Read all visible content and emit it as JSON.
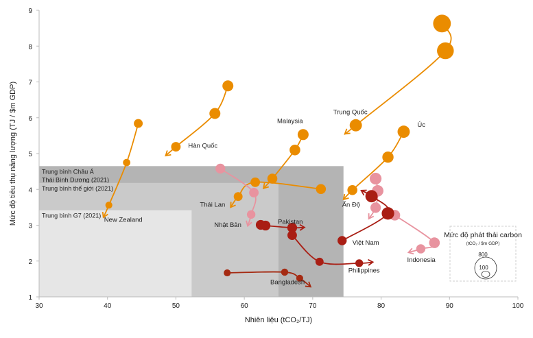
{
  "chart_data": {
    "type": "scatter",
    "subtype": "bubble-trajectory",
    "xlabel": "Nhiên liệu (tCO₂/TJ)",
    "ylabel": "Mức độ tiêu thụ năng lượng (TJ / $m GDP)",
    "xlim": [
      30,
      100
    ],
    "ylim": [
      1,
      9
    ],
    "xticks": [
      30,
      40,
      50,
      60,
      70,
      80,
      90,
      100
    ],
    "yticks": [
      1,
      2,
      3,
      4,
      5,
      6,
      7,
      8,
      9
    ],
    "grid": false,
    "benchmarks": [
      {
        "label": "Trung bình Châu Á Thái Bình Dương (2021)",
        "label_lines": [
          "Trung bình Châu Á",
          "Thái Bình Dương (2021)"
        ],
        "x": 74.5,
        "y": 4.65,
        "color": "#b4b4b4"
      },
      {
        "label": "Trung bình thế giới (2021)",
        "label_lines": [
          "Trung bình thế giới (2021)"
        ],
        "x": 65.0,
        "y": 4.18,
        "color": "#cacaca"
      },
      {
        "label": "Trung bình G7 (2021)",
        "label_lines": [
          "Trung bình G7 (2021)"
        ],
        "x": 52.3,
        "y": 3.42,
        "color": "#e6e6e6"
      }
    ],
    "series": [
      {
        "name": "Trung Quốc",
        "color": "#ea8c00",
        "points": [
          {
            "x": 88.9,
            "y": 8.63,
            "size": 520
          },
          {
            "x": 89.4,
            "y": 7.87,
            "size": 470
          },
          {
            "x": 76.3,
            "y": 5.79,
            "size": 250
          }
        ],
        "arrow": {
          "x": 74.7,
          "y": 5.55
        },
        "label_pos": {
          "x": 73.0,
          "y": 6.1
        }
      },
      {
        "name": "Úc",
        "color": "#ea8c00",
        "points": [
          {
            "x": 83.3,
            "y": 5.61,
            "size": 250
          },
          {
            "x": 81.0,
            "y": 4.9,
            "size": 210
          },
          {
            "x": 75.8,
            "y": 3.98,
            "size": 165
          }
        ],
        "arrow": {
          "x": 74.5,
          "y": 3.72
        },
        "label_pos": {
          "x": 85.3,
          "y": 5.75
        }
      },
      {
        "name": "Hàn Quốc",
        "color": "#ea8c00",
        "points": [
          {
            "x": 57.6,
            "y": 6.89,
            "size": 200
          },
          {
            "x": 55.7,
            "y": 6.12,
            "size": 200
          },
          {
            "x": 50.0,
            "y": 5.19,
            "size": 150
          }
        ],
        "arrow": {
          "x": 48.5,
          "y": 4.94
        },
        "label_pos": {
          "x": 51.8,
          "y": 5.16
        }
      },
      {
        "name": "Malaysia",
        "color": "#ea8c00",
        "points": [
          {
            "x": 68.6,
            "y": 5.53,
            "size": 200
          },
          {
            "x": 67.4,
            "y": 5.1,
            "size": 190
          },
          {
            "x": 64.1,
            "y": 4.3,
            "size": 165
          }
        ],
        "arrow": {
          "x": 62.8,
          "y": 4.03
        },
        "label_pos": {
          "x": 64.8,
          "y": 5.85
        }
      },
      {
        "name": "Thái Lan",
        "color": "#ea8c00",
        "points": [
          {
            "x": 71.2,
            "y": 4.01,
            "size": 165
          },
          {
            "x": 61.6,
            "y": 4.2,
            "size": 150
          },
          {
            "x": 59.1,
            "y": 3.8,
            "size": 130
          }
        ],
        "arrow": {
          "x": 58.0,
          "y": 3.5
        },
        "label_pos": {
          "x": 53.5,
          "y": 3.52
        }
      },
      {
        "name": "New Zealand",
        "color": "#ea8c00",
        "points": [
          {
            "x": 44.5,
            "y": 5.84,
            "size": 130
          },
          {
            "x": 42.8,
            "y": 4.75,
            "size": 90
          },
          {
            "x": 40.2,
            "y": 3.56,
            "size": 80
          }
        ],
        "arrow": {
          "x": 39.4,
          "y": 3.22
        },
        "label_pos": {
          "x": 39.5,
          "y": 3.1
        }
      },
      {
        "name": "Nhật Bản",
        "color": "#e8939f",
        "points": [
          {
            "x": 56.5,
            "y": 4.58,
            "size": 160
          },
          {
            "x": 61.4,
            "y": 3.91,
            "size": 150
          },
          {
            "x": 61.0,
            "y": 3.3,
            "size": 120
          }
        ],
        "arrow": {
          "x": 60.5,
          "y": 2.98
        },
        "label_pos": {
          "x": 55.6,
          "y": 2.95
        }
      },
      {
        "name": "Ấn Độ",
        "color": "#e8939f",
        "points": [
          {
            "x": 79.2,
            "y": 4.3,
            "size": 230
          },
          {
            "x": 79.5,
            "y": 3.96,
            "size": 220
          },
          {
            "x": 79.2,
            "y": 3.49,
            "size": 180
          }
        ],
        "arrow": {
          "x": 78.2,
          "y": 3.18
        },
        "label_pos": {
          "x": 74.3,
          "y": 3.52
        }
      },
      {
        "name": "Indonesia",
        "color": "#e8939f",
        "points": [
          {
            "x": 82.0,
            "y": 3.28,
            "size": 190
          },
          {
            "x": 87.8,
            "y": 2.51,
            "size": 190
          },
          {
            "x": 85.8,
            "y": 2.34,
            "size": 140
          }
        ],
        "arrow": {
          "x": 84.0,
          "y": 2.24
        },
        "label_pos": {
          "x": 83.8,
          "y": 1.98
        }
      },
      {
        "name": "Việt Nam",
        "color": "#a91e14",
        "points": [
          {
            "x": 74.3,
            "y": 2.57,
            "size": 140
          },
          {
            "x": 81.0,
            "y": 3.33,
            "size": 260
          },
          {
            "x": 78.6,
            "y": 3.81,
            "size": 250
          }
        ],
        "arrow": {
          "x": 77.1,
          "y": 3.97
        },
        "label_pos": {
          "x": 75.8,
          "y": 2.45
        }
      },
      {
        "name": "Pakistan",
        "color": "#a91e14",
        "points": [
          {
            "x": 62.4,
            "y": 3.01,
            "size": 160
          },
          {
            "x": 63.1,
            "y": 2.99,
            "size": 160
          },
          {
            "x": 67.0,
            "y": 2.93,
            "size": 160
          }
        ],
        "arrow": {
          "x": 68.8,
          "y": 2.94
        },
        "label_pos": {
          "x": 64.9,
          "y": 3.04
        }
      },
      {
        "name": "Philippines",
        "color": "#a91e14",
        "points": [
          {
            "x": 67.0,
            "y": 2.72,
            "size": 150
          },
          {
            "x": 71.0,
            "y": 1.98,
            "size": 110
          },
          {
            "x": 76.8,
            "y": 1.94,
            "size": 100
          }
        ],
        "arrow": {
          "x": 78.8,
          "y": 1.97
        },
        "label_pos": {
          "x": 75.2,
          "y": 1.68
        }
      },
      {
        "name": "Bangladesh",
        "color": "#a52a12",
        "points": [
          {
            "x": 57.5,
            "y": 1.67,
            "size": 80
          },
          {
            "x": 65.9,
            "y": 1.69,
            "size": 85
          },
          {
            "x": 68.1,
            "y": 1.52,
            "size": 80
          }
        ],
        "arrow": {
          "x": 69.7,
          "y": 1.28
        },
        "label_pos": {
          "x": 63.8,
          "y": 1.35
        }
      }
    ],
    "size_legend": {
      "title": "Mức độ phát thải carbon",
      "unit": "(tCO₂ / $m GDP)",
      "values": [
        800,
        100
      ],
      "labels": [
        "800",
        "100"
      ]
    }
  }
}
